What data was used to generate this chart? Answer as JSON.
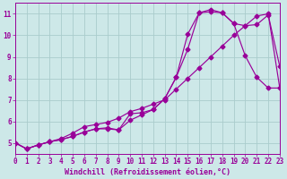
{
  "xlabel": "Windchill (Refroidissement éolien,°C)",
  "background_color": "#cde8e8",
  "line_color": "#990099",
  "grid_color": "#aacccc",
  "xlim": [
    0,
    23
  ],
  "ylim": [
    4.5,
    11.5
  ],
  "yticks": [
    5,
    6,
    7,
    8,
    9,
    10,
    11
  ],
  "xticks": [
    0,
    1,
    2,
    3,
    4,
    5,
    6,
    7,
    8,
    9,
    10,
    11,
    12,
    13,
    14,
    15,
    16,
    17,
    18,
    19,
    20,
    21,
    22,
    23
  ],
  "curve1_x": [
    0,
    1,
    2,
    3,
    4,
    5,
    6,
    7,
    8,
    9,
    10,
    11,
    12,
    13,
    14,
    15,
    16,
    17,
    18,
    19,
    20,
    21,
    22,
    23
  ],
  "curve1_y": [
    5.0,
    4.72,
    4.9,
    5.05,
    5.15,
    5.3,
    5.5,
    5.65,
    5.65,
    5.6,
    6.05,
    6.3,
    6.55,
    7.05,
    8.05,
    9.35,
    11.05,
    11.2,
    11.05,
    10.55,
    9.05,
    8.05,
    7.55,
    7.55
  ],
  "curve2_x": [
    0,
    1,
    2,
    3,
    4,
    5,
    6,
    7,
    8,
    9,
    10,
    11,
    12,
    13,
    14,
    15,
    16,
    17,
    18,
    19,
    20,
    21,
    22,
    23
  ],
  "curve2_y": [
    5.0,
    4.72,
    4.9,
    5.05,
    5.15,
    5.3,
    5.5,
    5.65,
    5.7,
    5.6,
    6.35,
    6.4,
    6.55,
    7.05,
    8.05,
    10.05,
    11.05,
    11.1,
    11.05,
    10.55,
    10.45,
    10.5,
    10.95,
    8.55
  ],
  "curve3_x": [
    0,
    1,
    2,
    3,
    4,
    5,
    6,
    7,
    8,
    9,
    10,
    11,
    12,
    13,
    14,
    15,
    16,
    17,
    18,
    19,
    20,
    21,
    22,
    23
  ],
  "curve3_y": [
    5.0,
    4.72,
    4.9,
    5.05,
    5.2,
    5.45,
    5.75,
    5.85,
    5.95,
    6.15,
    6.45,
    6.6,
    6.8,
    7.0,
    7.5,
    8.0,
    8.5,
    9.0,
    9.5,
    10.0,
    10.45,
    10.9,
    11.0,
    7.55
  ]
}
